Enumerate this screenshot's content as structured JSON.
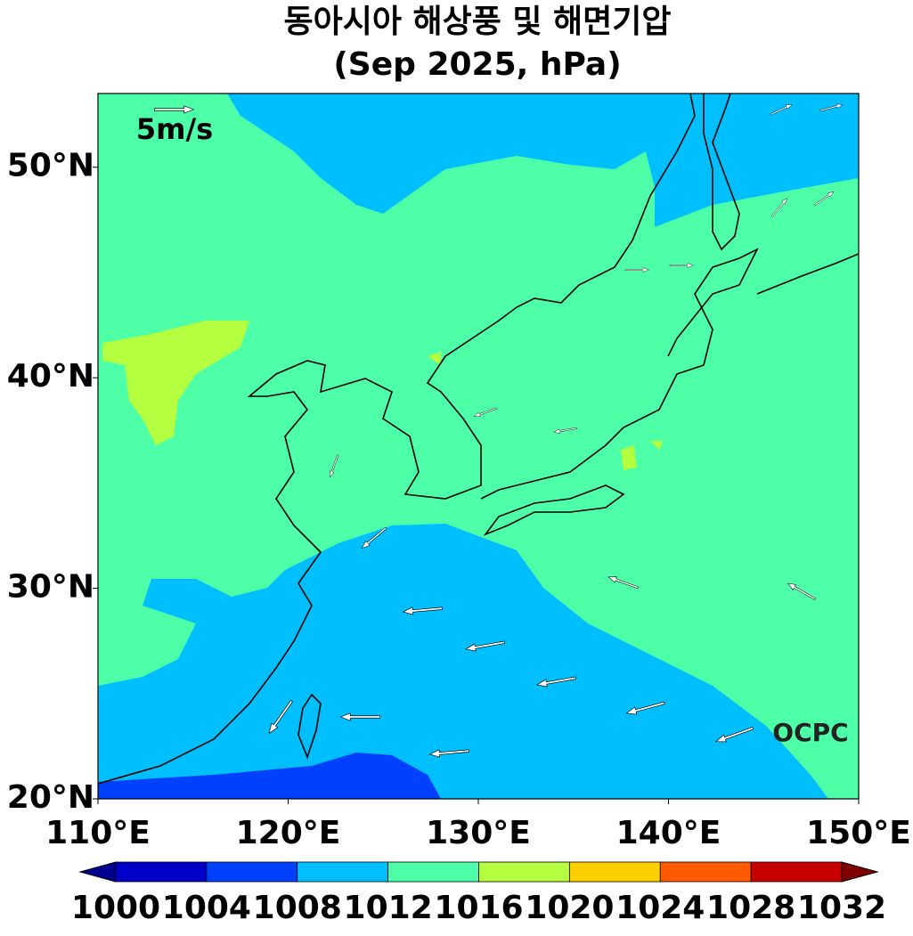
{
  "title": "동아시아 해상풍 및 해면기압",
  "subtitle": "(Sep 2025, hPa)",
  "map": {
    "xlim": [
      110,
      150
    ],
    "ylim": [
      20,
      53.5
    ],
    "xticks": [
      {
        "value": 110,
        "label": "110°E"
      },
      {
        "value": 120,
        "label": "120°E"
      },
      {
        "value": 130,
        "label": "130°E"
      },
      {
        "value": 140,
        "label": "140°E"
      },
      {
        "value": 150,
        "label": "150°E"
      }
    ],
    "yticks": [
      {
        "value": 20,
        "label": "20°N"
      },
      {
        "value": 30,
        "label": "30°N"
      },
      {
        "value": 40,
        "label": "40°N"
      },
      {
        "value": 50,
        "label": "50°N"
      }
    ]
  },
  "colorbar": {
    "levels": [
      1000,
      1004,
      1008,
      1012,
      1016,
      1020,
      1024,
      1028,
      1032
    ],
    "colors": [
      "#0000c8",
      "#0040ff",
      "#00bfff",
      "#4dffa6",
      "#b3ff40",
      "#ffd000",
      "#ff5a00",
      "#c80000"
    ],
    "extend_colors": [
      "#000090",
      "#800000"
    ]
  },
  "reference_vector": "5m/s",
  "watermark": "OCPC"
}
